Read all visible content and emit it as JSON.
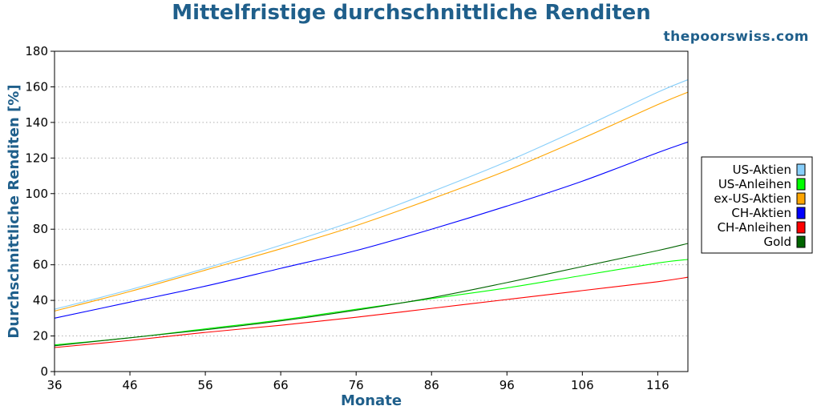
{
  "chart_data": {
    "type": "line",
    "title": "Mittelfristige durchschnittliche Renditen",
    "watermark": "thepoorswiss.com",
    "xlabel": "Monate",
    "ylabel": "Durchschnittliche Renditen [%]",
    "xlim": [
      36,
      120
    ],
    "ylim": [
      0,
      180
    ],
    "xticks": [
      36,
      46,
      56,
      66,
      76,
      86,
      96,
      106,
      116
    ],
    "yticks": [
      0,
      20,
      40,
      60,
      80,
      100,
      120,
      140,
      160,
      180
    ],
    "grid": "horizontal-dotted",
    "legend_position": "right",
    "series": [
      {
        "name": "US-Aktien",
        "color": "#87cefa",
        "points": [
          [
            36,
            35
          ],
          [
            46,
            46
          ],
          [
            56,
            58
          ],
          [
            66,
            71
          ],
          [
            76,
            85
          ],
          [
            86,
            101
          ],
          [
            96,
            118
          ],
          [
            106,
            137
          ],
          [
            116,
            157
          ],
          [
            120,
            164
          ]
        ]
      },
      {
        "name": "US-Anleihen",
        "color": "#00ff00",
        "points": [
          [
            36,
            15
          ],
          [
            46,
            19
          ],
          [
            56,
            24
          ],
          [
            66,
            29
          ],
          [
            76,
            35
          ],
          [
            86,
            41
          ],
          [
            96,
            47
          ],
          [
            106,
            54
          ],
          [
            116,
            61
          ],
          [
            120,
            63
          ]
        ]
      },
      {
        "name": "ex-US-Aktien",
        "color": "#ffa500",
        "points": [
          [
            36,
            34
          ],
          [
            46,
            45
          ],
          [
            56,
            57
          ],
          [
            66,
            69
          ],
          [
            76,
            82
          ],
          [
            86,
            97
          ],
          [
            96,
            113
          ],
          [
            106,
            131
          ],
          [
            116,
            150
          ],
          [
            120,
            157
          ]
        ]
      },
      {
        "name": "CH-Aktien",
        "color": "#0000ff",
        "points": [
          [
            36,
            30
          ],
          [
            46,
            39
          ],
          [
            56,
            48
          ],
          [
            66,
            58
          ],
          [
            76,
            68
          ],
          [
            86,
            80
          ],
          [
            96,
            93
          ],
          [
            106,
            107
          ],
          [
            116,
            123
          ],
          [
            120,
            129
          ]
        ]
      },
      {
        "name": "CH-Anleihen",
        "color": "#ff0000",
        "points": [
          [
            36,
            13.5
          ],
          [
            46,
            17.5
          ],
          [
            56,
            22
          ],
          [
            66,
            26
          ],
          [
            76,
            30.5
          ],
          [
            86,
            35.5
          ],
          [
            96,
            40.5
          ],
          [
            106,
            45.5
          ],
          [
            116,
            50.5
          ],
          [
            120,
            53
          ]
        ]
      },
      {
        "name": "Gold",
        "color": "#006400",
        "points": [
          [
            36,
            14.5
          ],
          [
            46,
            19
          ],
          [
            56,
            23.5
          ],
          [
            66,
            28.5
          ],
          [
            76,
            34.5
          ],
          [
            86,
            41.5
          ],
          [
            96,
            50
          ],
          [
            106,
            59
          ],
          [
            116,
            68
          ],
          [
            120,
            72
          ]
        ]
      }
    ]
  }
}
